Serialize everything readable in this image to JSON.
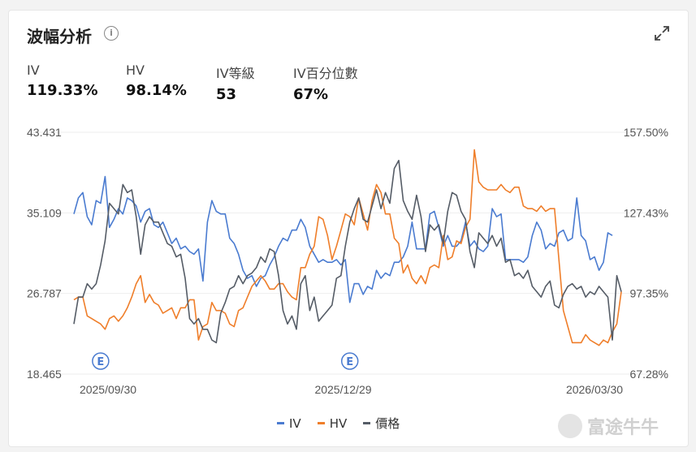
{
  "header": {
    "title": "波幅分析"
  },
  "metrics": [
    {
      "label": "IV",
      "value": "119.33%"
    },
    {
      "label": "HV",
      "value": "98.14%"
    },
    {
      "label": "IV等級",
      "value": "53"
    },
    {
      "label": "IV百分位數",
      "value": "67%"
    }
  ],
  "watermark": "富途牛牛",
  "colors": {
    "iv": "#4a7bd0",
    "hv": "#ef7e2a",
    "price": "#555c66",
    "grid": "#eeeeee"
  },
  "chart_data": {
    "type": "line",
    "x_labels": [
      "2025/09/30",
      "2025/12/29",
      "2026/03/30"
    ],
    "left_axis": {
      "ticks": [
        "43.431",
        "35.109",
        "26.787",
        "18.465"
      ],
      "range": [
        18.465,
        43.431
      ]
    },
    "right_axis": {
      "ticks": [
        "157.50%",
        "127.43%",
        "97.35%",
        "67.28%"
      ],
      "range": [
        67.28,
        157.5
      ]
    },
    "event_markers": [
      {
        "label": "E",
        "index": 6
      },
      {
        "label": "E",
        "index": 62
      }
    ],
    "series": [
      {
        "name": "IV",
        "axis": "right",
        "values": [
          127.0,
          133.0,
          135.0,
          126.0,
          123.0,
          132.0,
          131.0,
          141.0,
          122.0,
          125.0,
          129.0,
          127.0,
          133.0,
          132.0,
          130.0,
          124.0,
          128.0,
          129.0,
          123.0,
          122.0,
          124.0,
          120.0,
          116.0,
          118.0,
          114.0,
          115.0,
          113.0,
          112.0,
          114.0,
          102.0,
          124.0,
          132.0,
          128.0,
          127.0,
          127.0,
          118.0,
          116.0,
          112.0,
          106.0,
          103.0,
          104.0,
          100.0,
          103.0,
          104.0,
          108.0,
          111.0,
          115.0,
          118.0,
          117.0,
          121.0,
          121.0,
          125.0,
          122.0,
          115.0,
          112.0,
          109.0,
          110.0,
          109.0,
          109.0,
          110.0,
          108.0,
          110.0,
          94.0,
          101.0,
          101.0,
          97.0,
          100.0,
          99.0,
          106.0,
          103.0,
          105.0,
          104.0,
          109.0,
          109.0,
          111.0,
          115.0,
          124.0,
          114.0,
          114.0,
          114.0,
          127.0,
          128.0,
          122.0,
          115.0,
          119.0,
          115.0,
          115.0,
          117.0,
          124.0,
          115.0,
          117.0,
          114.0,
          113.0,
          115.0,
          129.0,
          126.0,
          127.0,
          110.0,
          110.0,
          110.0,
          110.0,
          109.0,
          111.0,
          119.0,
          124.0,
          121.0,
          114.0,
          116.0,
          115.0,
          120.0,
          121.0,
          117.0,
          118.0,
          133.0,
          119.0,
          117.0,
          110.0,
          111.0,
          106.0,
          109.0,
          120.0,
          119.0
        ]
      },
      {
        "name": "HV",
        "axis": "right",
        "values": [
          95.0,
          96.0,
          96.0,
          89.0,
          88.0,
          87.0,
          86.0,
          84.0,
          88.0,
          89.0,
          87.0,
          89.0,
          92.0,
          96.0,
          101.0,
          104.0,
          94.0,
          97.0,
          94.0,
          93.0,
          90.0,
          91.0,
          92.0,
          88.0,
          92.0,
          92.0,
          95.0,
          95.0,
          80.0,
          85.0,
          86.0,
          94.0,
          91.0,
          91.0,
          90.0,
          86.0,
          85.0,
          91.0,
          92.0,
          96.0,
          100.0,
          102.0,
          104.0,
          102.0,
          99.0,
          99.0,
          101.0,
          101.0,
          98.0,
          96.0,
          95.0,
          107.0,
          107.0,
          112.0,
          115.0,
          126.0,
          125.0,
          119.0,
          110.0,
          115.0,
          121.0,
          127.0,
          126.0,
          123.0,
          133.0,
          127.0,
          121.0,
          132.0,
          138.0,
          135.0,
          127.0,
          127.0,
          118.0,
          116.0,
          105.0,
          108.0,
          103.0,
          101.0,
          104.0,
          101.0,
          107.0,
          108.0,
          107.0,
          119.0,
          110.0,
          111.0,
          117.0,
          116.0,
          122.0,
          125.0,
          151.0,
          139.0,
          137.0,
          136.0,
          136.0,
          136.0,
          138.0,
          136.0,
          135.0,
          137.0,
          137.0,
          130.0,
          129.0,
          129.0,
          128.0,
          130.0,
          128.0,
          129.0,
          129.0,
          110.0,
          91.0,
          85.0,
          79.0,
          79.0,
          79.0,
          82.0,
          80.0,
          79.0,
          78.0,
          80.0,
          79.0,
          83.0,
          86.0,
          98.0
        ]
      },
      {
        "name": "價格",
        "axis": "right",
        "values": [
          86.0,
          96.0,
          96.0,
          101.0,
          99.0,
          101.0,
          108.0,
          117.0,
          131.0,
          129.0,
          127.0,
          138.0,
          135.0,
          136.0,
          126.0,
          112.0,
          123.0,
          126.0,
          124.0,
          124.0,
          120.0,
          116.0,
          115.0,
          111.0,
          112.0,
          103.0,
          88.0,
          86.0,
          88.0,
          84.0,
          84.0,
          80.0,
          79.0,
          90.0,
          94.0,
          99.0,
          100.0,
          104.0,
          101.0,
          104.0,
          105.0,
          107.0,
          111.0,
          109.0,
          114.0,
          113.0,
          104.0,
          91.0,
          86.0,
          89.0,
          84.0,
          101.0,
          104.0,
          91.0,
          96.0,
          87.0,
          89.0,
          91.0,
          93.0,
          103.0,
          104.0,
          115.0,
          124.0,
          129.0,
          133.0,
          125.0,
          124.0,
          130.0,
          136.0,
          129.0,
          135.0,
          131.0,
          144.0,
          147.0,
          132.0,
          128.0,
          125.0,
          134.0,
          126.0,
          113.0,
          123.0,
          121.0,
          123.0,
          116.0,
          128.0,
          135.0,
          134.0,
          128.0,
          125.0,
          113.0,
          107.0,
          120.0,
          118.0,
          116.0,
          119.0,
          115.0,
          118.0,
          109.0,
          110.0,
          104.0,
          105.0,
          103.0,
          106.0,
          100.0,
          98.0,
          96.0,
          100.0,
          102.0,
          93.0,
          92.0,
          97.0,
          100.0,
          101.0,
          99.0,
          100.0,
          96.0,
          98.0,
          97.0,
          100.0,
          98.0,
          96.0,
          80.0,
          104.0,
          98.0
        ]
      }
    ]
  }
}
